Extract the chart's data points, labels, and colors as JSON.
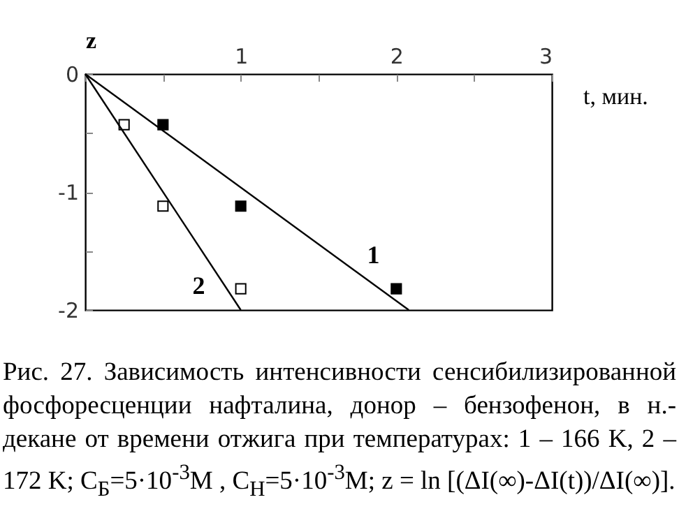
{
  "chart_data": {
    "type": "scatter",
    "xlabel": "t, мин.",
    "ylabel": "z",
    "marker": "square",
    "grid": false,
    "xlim": [
      0,
      3
    ],
    "xticks": [
      {
        "value": 0,
        "label": null
      },
      {
        "value": 0.5,
        "label": null
      },
      1,
      {
        "value": 1.5,
        "label": null
      },
      2,
      {
        "value": 2.5,
        "label": null
      },
      3
    ],
    "ylim": [
      -2,
      0
    ],
    "yticks": [
      -2,
      {
        "value": -1.5,
        "label": null
      },
      -1,
      {
        "value": -0.5,
        "label": null
      },
      0
    ],
    "series": [
      {
        "color": "#000000",
        "x": [
          0.5,
          1,
          2
        ],
        "values": [
          -0.43,
          -1.12,
          -1.82
        ]
      },
      {
        "color": "#ffffff",
        "x": [
          0.25,
          0.5,
          1
        ],
        "values": [
          -0.43,
          -1.12,
          -1.82
        ]
      },
      {
        "type": "line",
        "name": "1",
        "color": "#000000",
        "marker": "none",
        "x": [
          0,
          2.08
        ],
        "values": [
          0,
          -2
        ]
      },
      {
        "type": "line",
        "name": "2",
        "color": "#000000",
        "marker": "none",
        "x": [
          0,
          1
        ],
        "values": [
          0,
          -2
        ]
      }
    ],
    "annotations": [
      "Рис. 27. Зависимость интенсивности сенсибилизированной фосфоресценции нафталина, донор – бензофенон, в н.-декане от времени отжига при температурах: 1 – 166 K, 2 – 172 K; C$_{Б}$=5·10$^{-3}$M , C$_{Н}$=5·10$^{-3}$M; z = ln [(ΔI(∞)-ΔI(t))/ΔI(∞)]."
    ]
  }
}
